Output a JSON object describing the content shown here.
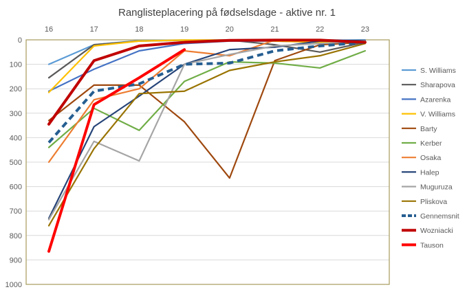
{
  "chart_data": {
    "type": "line",
    "title": "Ranglisteplacering på fødselsdage - aktive nr. 1",
    "xlabel": "",
    "ylabel": "",
    "x": [
      16,
      17,
      18,
      19,
      20,
      21,
      22,
      23
    ],
    "x_tick_labels": [
      "16",
      "17",
      "18",
      "19",
      "20",
      "21",
      "22",
      "23"
    ],
    "ylim": [
      0,
      1000
    ],
    "y_inverted": true,
    "y_tick_labels": [
      "0",
      "100",
      "200",
      "300",
      "400",
      "500",
      "600",
      "700",
      "800",
      "900",
      "1000"
    ],
    "grid": true,
    "legend_position": "right",
    "series": [
      {
        "name": "S. Williams",
        "color": "#5b9bd5",
        "values": [
          100,
          20,
          3,
          1,
          1,
          1,
          1,
          1
        ]
      },
      {
        "name": "Sharapova",
        "color": "#595959",
        "values": [
          155,
          20,
          5,
          2,
          1,
          20,
          50,
          10
        ]
      },
      {
        "name": "Azarenka",
        "color": "#4472c4",
        "values": [
          210,
          120,
          45,
          15,
          5,
          5,
          10,
          10
        ]
      },
      {
        "name": "V. Williams",
        "color": "#ffc000",
        "values": [
          215,
          25,
          5,
          1,
          1,
          5,
          10,
          5
        ]
      },
      {
        "name": "Barty",
        "color": "#9e480e",
        "values": [
          330,
          185,
          185,
          335,
          565,
          85,
          20,
          10
        ]
      },
      {
        "name": "Kerber",
        "color": "#70ad47",
        "values": [
          440,
          280,
          370,
          170,
          90,
          95,
          115,
          45
        ]
      },
      {
        "name": "Osaka",
        "color": "#ed7d31",
        "values": [
          500,
          245,
          200,
          45,
          65,
          1,
          5,
          5
        ]
      },
      {
        "name": "Halep",
        "color": "#264478",
        "values": [
          730,
          355,
          230,
          100,
          40,
          30,
          5,
          2
        ]
      },
      {
        "name": "Muguruza",
        "color": "#a5a5a5",
        "values": [
          735,
          415,
          495,
          100,
          60,
          25,
          15,
          5
        ]
      },
      {
        "name": "Pliskova",
        "color": "#997300",
        "values": [
          760,
          445,
          220,
          210,
          125,
          90,
          65,
          15
        ]
      },
      {
        "name": "Gennemsnit",
        "color": "#255e91",
        "dashed": true,
        "values": [
          420,
          210,
          180,
          100,
          95,
          45,
          25,
          10
        ]
      },
      {
        "name": "Wozniacki",
        "color": "#c00000",
        "values": [
          345,
          85,
          25,
          10,
          2,
          1,
          1,
          10
        ]
      },
      {
        "name": "Tauson",
        "color": "#ff0000",
        "values": [
          865,
          265,
          155,
          40,
          null,
          null,
          null,
          null
        ]
      }
    ]
  }
}
